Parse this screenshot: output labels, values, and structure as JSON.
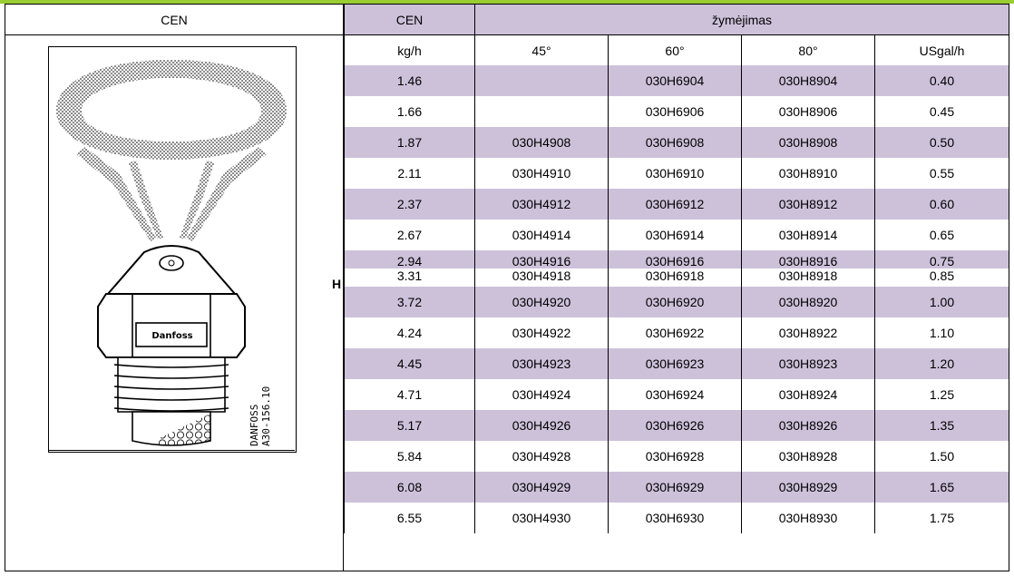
{
  "left_panel": {
    "header": "CEN",
    "side_mark": "H",
    "drawing": {
      "brand_label": "Danfoss",
      "ref_line1": "DANFOSS",
      "ref_line2": "A30-156.10"
    }
  },
  "table": {
    "col_cen": "CEN",
    "group_header": "žymėjimas",
    "sub_headers": [
      "kg/h",
      "45°",
      "60°",
      "80°",
      "USgal/h"
    ],
    "rows": [
      [
        "1.46",
        "",
        "030H6904",
        "030H8904",
        "0.40"
      ],
      [
        "1.66",
        "",
        "030H6906",
        "030H8906",
        "0.45"
      ],
      [
        "1.87",
        "030H4908",
        "030H6908",
        "030H8908",
        "0.50"
      ],
      [
        "2.11",
        "030H4910",
        "030H6910",
        "030H8910",
        "0.55"
      ],
      [
        "2.37",
        "030H4912",
        "030H6912",
        "030H8912",
        "0.60"
      ],
      [
        "2.67",
        "030H4914",
        "030H6914",
        "030H8914",
        "0.65"
      ],
      [
        "2.94",
        "030H4916",
        "030H6916",
        "030H8916",
        "0.75"
      ],
      [
        "3.31",
        "030H4918",
        "030H6918",
        "030H8918",
        "0.85"
      ],
      [
        "3.72",
        "030H4920",
        "030H6920",
        "030H8920",
        "1.00"
      ],
      [
        "4.24",
        "030H4922",
        "030H6922",
        "030H8922",
        "1.10"
      ],
      [
        "4.45",
        "030H4923",
        "030H6923",
        "030H8923",
        "1.20"
      ],
      [
        "4.71",
        "030H4924",
        "030H6924",
        "030H8924",
        "1.25"
      ],
      [
        "5.17",
        "030H4926",
        "030H6926",
        "030H8926",
        "1.35"
      ],
      [
        "5.84",
        "030H4928",
        "030H6928",
        "030H8928",
        "1.50"
      ],
      [
        "6.08",
        "030H4929",
        "030H6929",
        "030H8929",
        "1.65"
      ],
      [
        "6.55",
        "030H4930",
        "030H6930",
        "030H8930",
        "1.75"
      ]
    ]
  },
  "colors": {
    "row_shade": "#cdc1da",
    "top_band": "#9acd32"
  }
}
